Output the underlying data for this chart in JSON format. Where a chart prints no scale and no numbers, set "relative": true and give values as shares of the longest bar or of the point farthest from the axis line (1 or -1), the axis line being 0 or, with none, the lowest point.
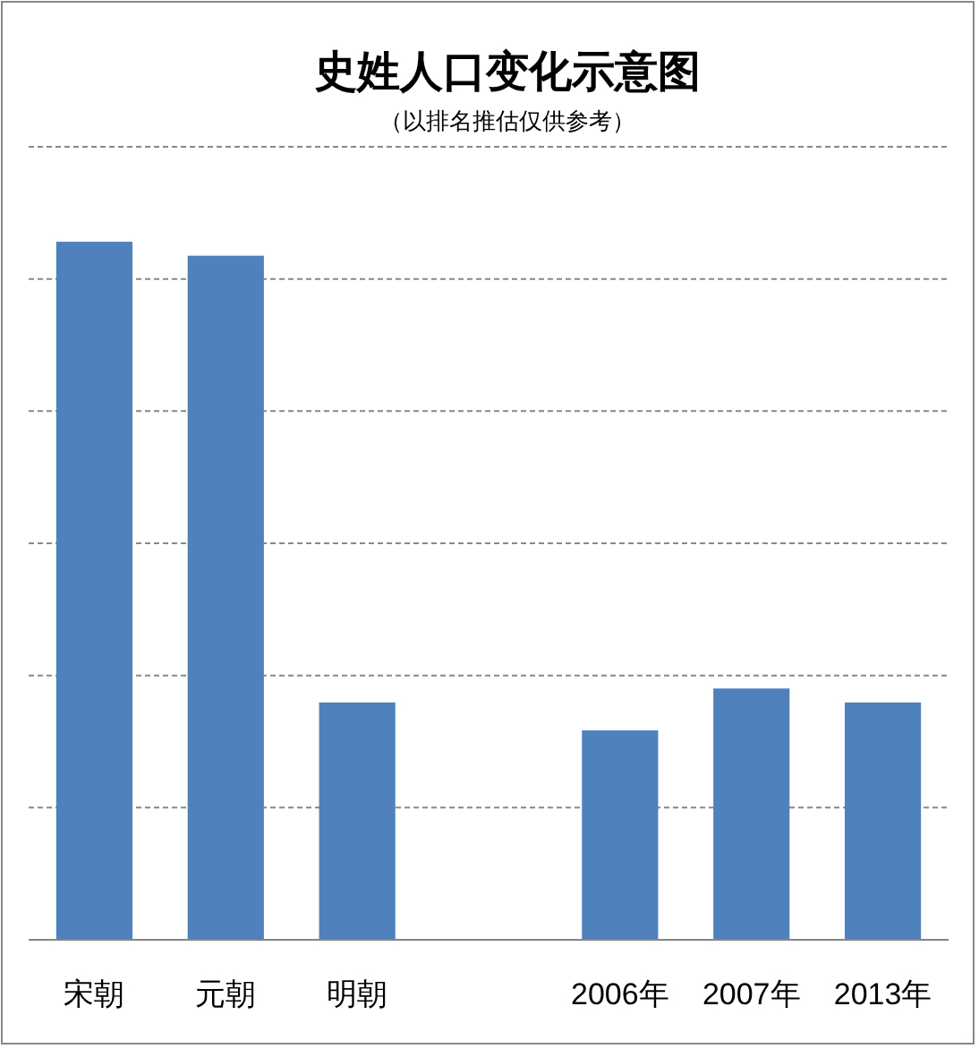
{
  "chart_data": {
    "type": "bar",
    "title": "史姓人口变化示意图",
    "subtitle": "（以排名推估仅供参考）",
    "categories": [
      "宋朝",
      "元朝",
      "明朝",
      null,
      "2006年",
      "2007年",
      "2013年"
    ],
    "values": [
      1,
      0.98,
      0.34,
      null,
      0.3,
      0.36,
      0.34
    ],
    "color": "#4f81bd",
    "relative": true,
    "grid": "y"
  }
}
